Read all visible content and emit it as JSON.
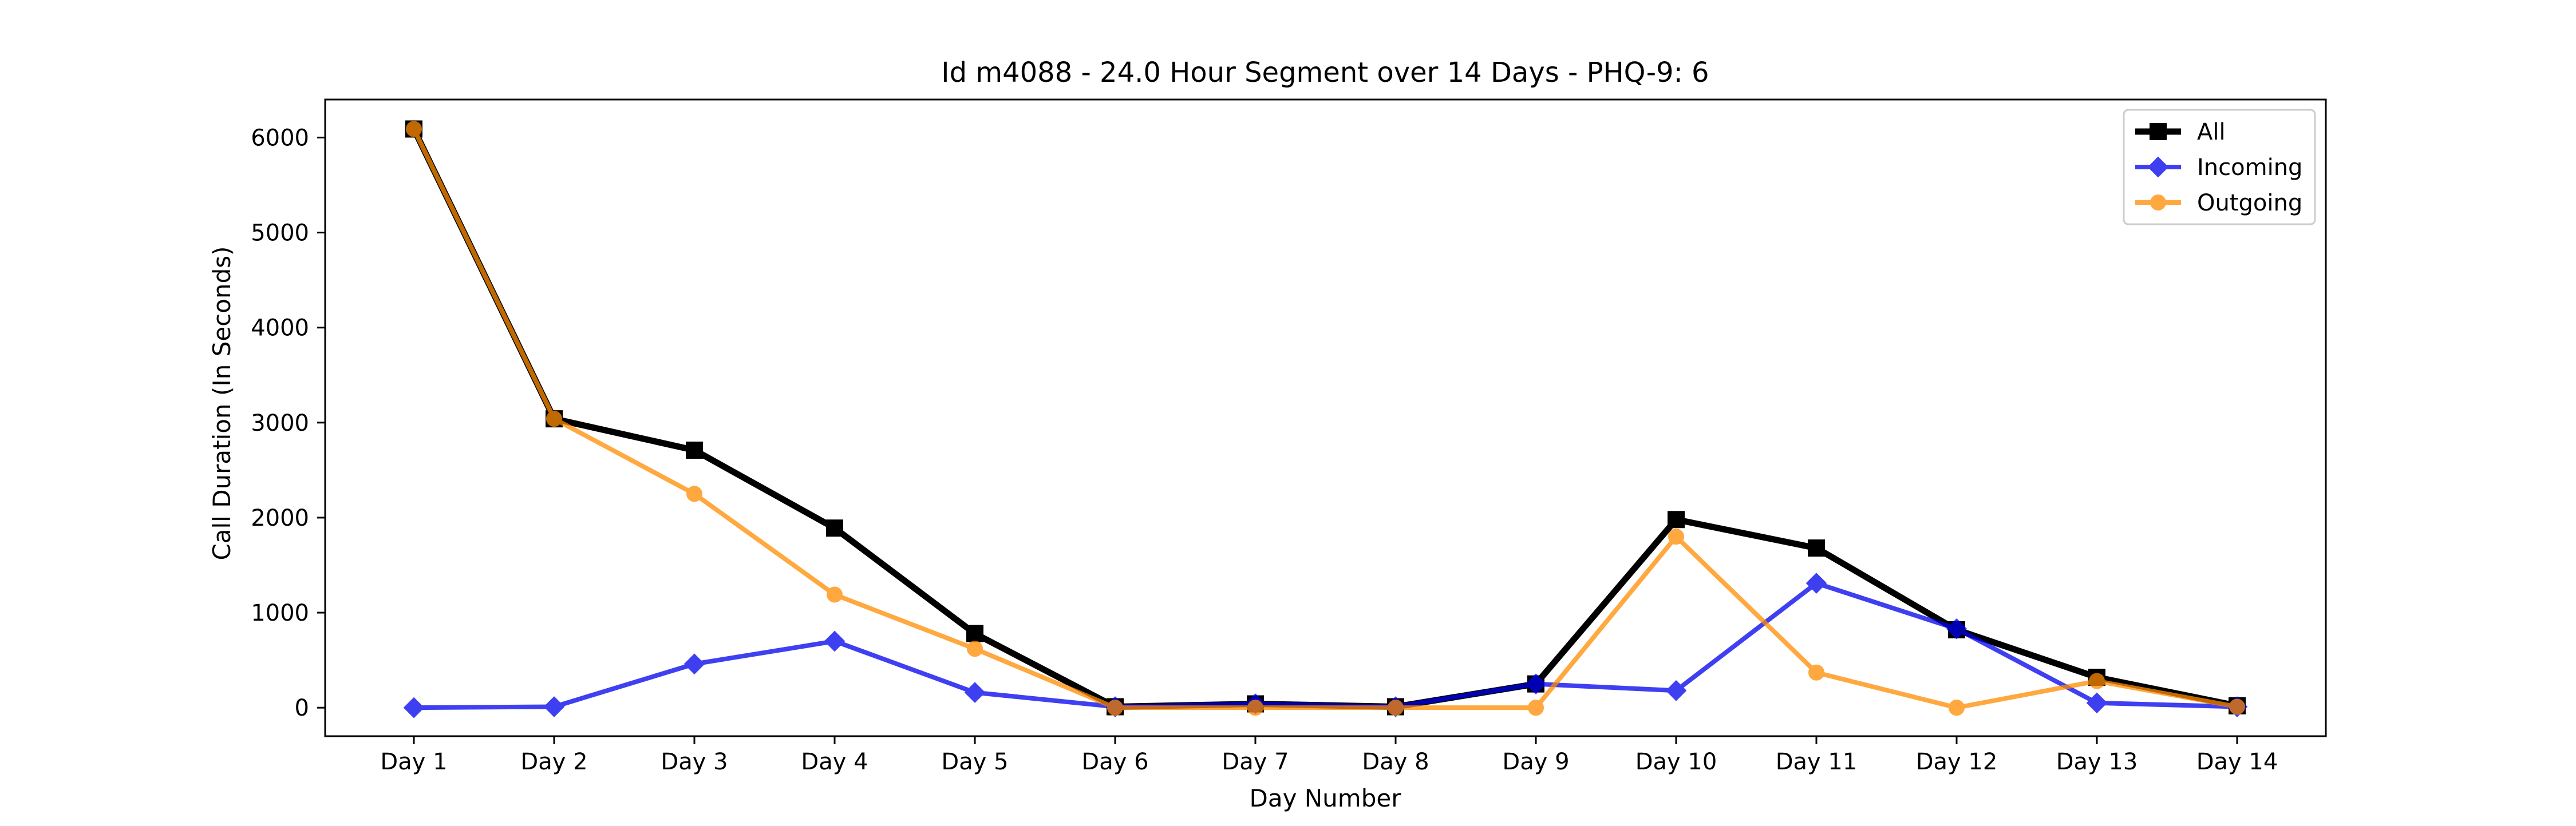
{
  "chart_data": {
    "type": "line",
    "title": "Id m4088 - 24.0 Hour Segment over 14 Days - PHQ-9: 6",
    "xlabel": "Day Number",
    "ylabel": "Call Duration (In Seconds)",
    "categories": [
      "Day 1",
      "Day 2",
      "Day 3",
      "Day 4",
      "Day 5",
      "Day 6",
      "Day 7",
      "Day 8",
      "Day 9",
      "Day 10",
      "Day 11",
      "Day 12",
      "Day 13",
      "Day 14"
    ],
    "ylim": [
      -300,
      6400
    ],
    "yticks": [
      0,
      1000,
      2000,
      3000,
      4000,
      5000,
      6000
    ],
    "grid": false,
    "legend_position": "top-right",
    "series": [
      {
        "name": "All",
        "color": "#000000",
        "marker": "square",
        "values": [
          6090,
          3040,
          2710,
          1890,
          780,
          10,
          40,
          10,
          250,
          1980,
          1680,
          820,
          320,
          20
        ]
      },
      {
        "name": "Incoming",
        "color": "#0000ee",
        "marker": "diamond",
        "values": [
          0,
          10,
          460,
          700,
          160,
          10,
          40,
          10,
          250,
          180,
          1310,
          830,
          50,
          10
        ]
      },
      {
        "name": "Outgoing",
        "color": "#ff8c00",
        "marker": "circle",
        "values": [
          6090,
          3040,
          2250,
          1190,
          620,
          0,
          0,
          0,
          0,
          1800,
          370,
          0,
          280,
          10
        ]
      }
    ]
  }
}
